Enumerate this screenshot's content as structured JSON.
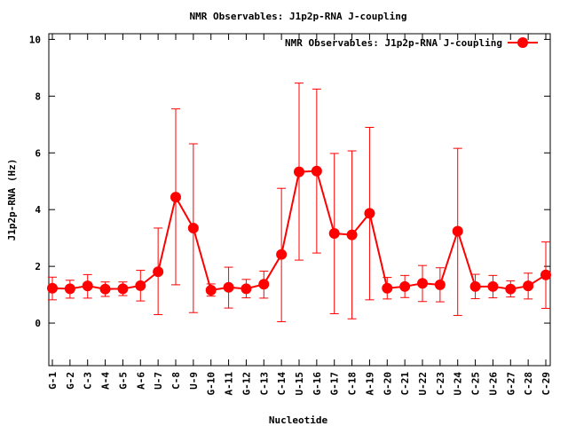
{
  "chart_data": {
    "type": "line",
    "title": "NMR Observables: J1p2p-RNA J-coupling",
    "xlabel": "Nucleotide",
    "ylabel": "J1p2p-RNA (Hz)",
    "ylim": [
      -1.5,
      10.2
    ],
    "yticks": [
      0,
      2,
      4,
      6,
      8,
      10
    ],
    "grid": false,
    "legend_position": "top-right",
    "categories": [
      "G-1",
      "G-2",
      "C-3",
      "A-4",
      "G-5",
      "A-6",
      "U-7",
      "C-8",
      "U-9",
      "G-10",
      "A-11",
      "G-12",
      "C-13",
      "C-14",
      "U-15",
      "G-16",
      "G-17",
      "C-18",
      "A-19",
      "G-20",
      "C-21",
      "U-22",
      "C-23",
      "U-24",
      "C-25",
      "U-26",
      "G-27",
      "C-28",
      "C-29"
    ],
    "series": [
      {
        "name": "NMR Observables: J1p2p-RNA J-coupling",
        "color": "#ff0000",
        "values": [
          1.23,
          1.21,
          1.31,
          1.2,
          1.21,
          1.32,
          1.81,
          4.44,
          3.35,
          1.16,
          1.26,
          1.21,
          1.37,
          2.42,
          5.33,
          5.36,
          3.16,
          3.11,
          3.87,
          1.23,
          1.29,
          1.4,
          1.35,
          3.24,
          1.29,
          1.29,
          1.2,
          1.31,
          1.7
        ],
        "err_low": [
          0.82,
          0.88,
          0.88,
          0.94,
          0.97,
          0.78,
          0.3,
          1.35,
          0.37,
          0.95,
          0.53,
          0.89,
          0.88,
          0.05,
          2.22,
          2.47,
          0.33,
          0.15,
          0.82,
          0.85,
          0.9,
          0.76,
          0.75,
          0.27,
          0.86,
          0.89,
          0.92,
          0.85,
          0.52
        ],
        "err_high": [
          1.62,
          1.51,
          1.71,
          1.45,
          1.45,
          1.86,
          3.35,
          7.55,
          6.32,
          1.38,
          1.97,
          1.54,
          1.83,
          4.75,
          8.46,
          8.25,
          5.98,
          6.07,
          6.9,
          1.61,
          1.68,
          2.03,
          1.95,
          6.16,
          1.72,
          1.68,
          1.49,
          1.76,
          2.86
        ]
      }
    ]
  }
}
